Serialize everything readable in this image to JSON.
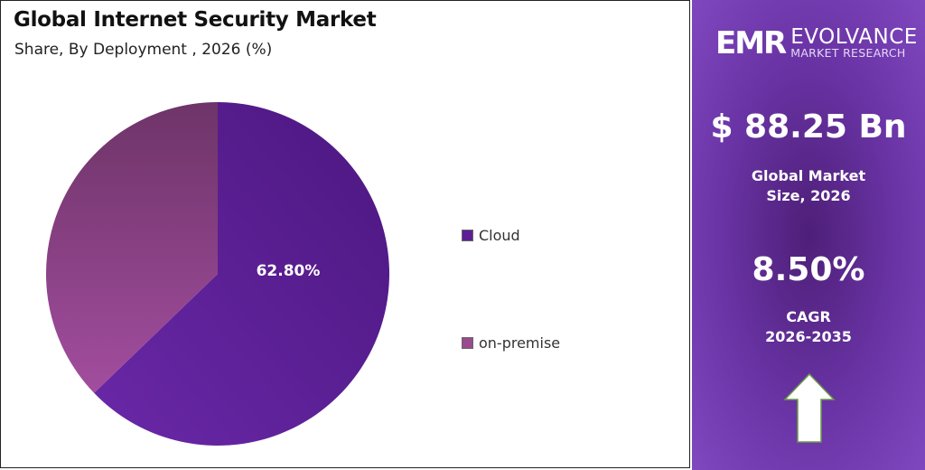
{
  "chart_data": {
    "type": "pie",
    "title": "Global  Internet Security Market",
    "subtitle": "Share, By Deployment , 2026 (%)",
    "categories": [
      "Cloud",
      "on-premise"
    ],
    "values": [
      62.8,
      37.2
    ],
    "data_labels": [
      "62.80%",
      ""
    ],
    "colors": [
      "#5e1f96",
      "#8e3f86"
    ],
    "start_angle": "12 o'clock",
    "direction": "clockwise",
    "legend_placement": "right"
  },
  "sidebar": {
    "logo_mark": "EMR",
    "logo_name": "EVOLVANCE",
    "logo_sub": "MARKET RESEARCH",
    "market_size": "$ 88.25 Bn",
    "market_size_label_1": "Global Market",
    "market_size_label_2": "Size, 2026",
    "cagr": "8.50%",
    "cagr_label_1": "CAGR",
    "cagr_label_2": "2026-2035",
    "arrow_icon": "up-arrow-icon"
  }
}
